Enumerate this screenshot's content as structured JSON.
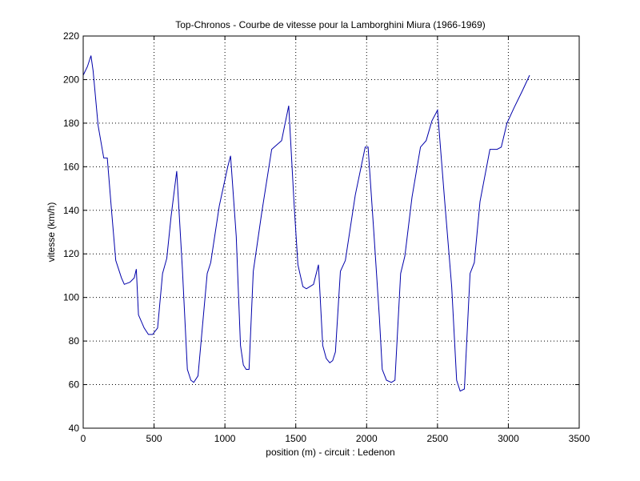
{
  "chart_data": {
    "type": "line",
    "title": "Top-Chronos - Courbe de vitesse pour la Lamborghini Miura (1966-1969)",
    "xlabel": "position (m) - circuit : Ledenon",
    "ylabel": "vitesse (km/h)",
    "xlim": [
      0,
      3500
    ],
    "ylim": [
      40,
      220
    ],
    "xticks": [
      0,
      500,
      1000,
      1500,
      2000,
      2500,
      3000,
      3500
    ],
    "yticks": [
      40,
      60,
      80,
      100,
      120,
      140,
      160,
      180,
      200,
      220
    ],
    "grid": true,
    "line_color": "#0000aa",
    "series": [
      {
        "x": [
          0,
          30,
          55,
          70,
          105,
          145,
          170,
          200,
          230,
          270,
          290,
          330,
          360,
          375,
          390,
          430,
          460,
          490,
          525,
          560,
          590,
          620,
          660,
          700,
          735,
          760,
          780,
          810,
          875,
          900,
          960,
          1020,
          1040,
          1080,
          1110,
          1130,
          1150,
          1170,
          1200,
          1260,
          1330,
          1365,
          1400,
          1450,
          1490,
          1515,
          1550,
          1575,
          1600,
          1625,
          1660,
          1690,
          1715,
          1740,
          1760,
          1780,
          1815,
          1850,
          1920,
          1990,
          2010,
          2050,
          2090,
          2110,
          2140,
          2175,
          2200,
          2240,
          2270,
          2320,
          2380,
          2420,
          2460,
          2500,
          2550,
          2600,
          2635,
          2660,
          2690,
          2730,
          2760,
          2800,
          2870,
          2920,
          2950,
          2990,
          3040,
          3100,
          3150
        ],
        "y": [
          202,
          206,
          211,
          204,
          179,
          164,
          164,
          140,
          117,
          109,
          106,
          107,
          109,
          113,
          92,
          86,
          83,
          83,
          86,
          111,
          118,
          137,
          158,
          113,
          67,
          62,
          61,
          64,
          111,
          116,
          142,
          160,
          165,
          128,
          78,
          69,
          67,
          67,
          112,
          139,
          168,
          170,
          172,
          188,
          141,
          115,
          105,
          104,
          105,
          106,
          115,
          78,
          72,
          70,
          71,
          75,
          112,
          117,
          147,
          169,
          169,
          131,
          91,
          67,
          62,
          61,
          62,
          111,
          119,
          146,
          169,
          172,
          181,
          186,
          145,
          105,
          62,
          57,
          58,
          111,
          116,
          144,
          168,
          168,
          169,
          180,
          187,
          195,
          202
        ]
      }
    ]
  }
}
